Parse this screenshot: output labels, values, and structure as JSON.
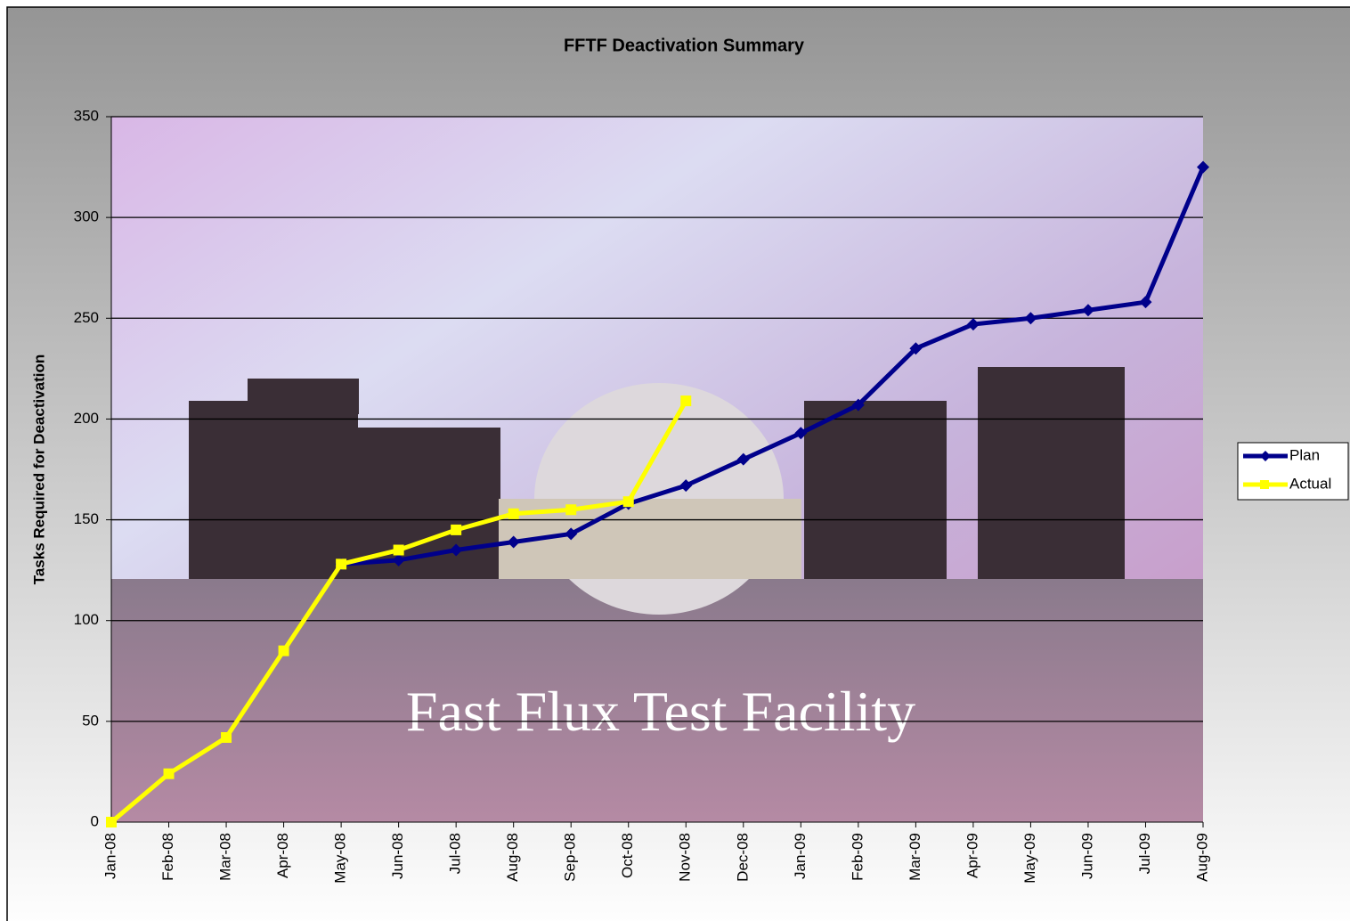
{
  "chart_data": {
    "type": "line",
    "title": "FFTF Deactivation Summary",
    "y_label": "Tasks Required for Deactivation",
    "annotation": "Fast Flux Test Facility",
    "categories": [
      "Jan-08",
      "Feb-08",
      "Mar-08",
      "Apr-08",
      "May-08",
      "Jun-08",
      "Jul-08",
      "Aug-08",
      "Sep-08",
      "Oct-08",
      "Nov-08",
      "Dec-08",
      "Jan-09",
      "Feb-09",
      "Mar-09",
      "Apr-09",
      "May-09",
      "Jun-09",
      "Jul-09",
      "Aug-09"
    ],
    "series": [
      {
        "name": "Plan",
        "color": "#00008b",
        "marker": "diamond",
        "values": [
          null,
          null,
          null,
          null,
          128,
          130,
          135,
          139,
          143,
          158,
          167,
          180,
          193,
          207,
          235,
          247,
          250,
          254,
          258,
          325
        ]
      },
      {
        "name": "Actual",
        "color": "#ffff00",
        "marker": "square",
        "values": [
          0,
          24,
          42,
          85,
          128,
          135,
          145,
          153,
          155,
          159,
          209,
          null,
          null,
          null,
          null,
          null,
          null,
          null,
          null,
          null
        ]
      }
    ],
    "ylim": [
      0,
      350
    ],
    "yticks": [
      0,
      50,
      100,
      150,
      200,
      250,
      300,
      350
    ],
    "grid": true,
    "legend": "right"
  }
}
